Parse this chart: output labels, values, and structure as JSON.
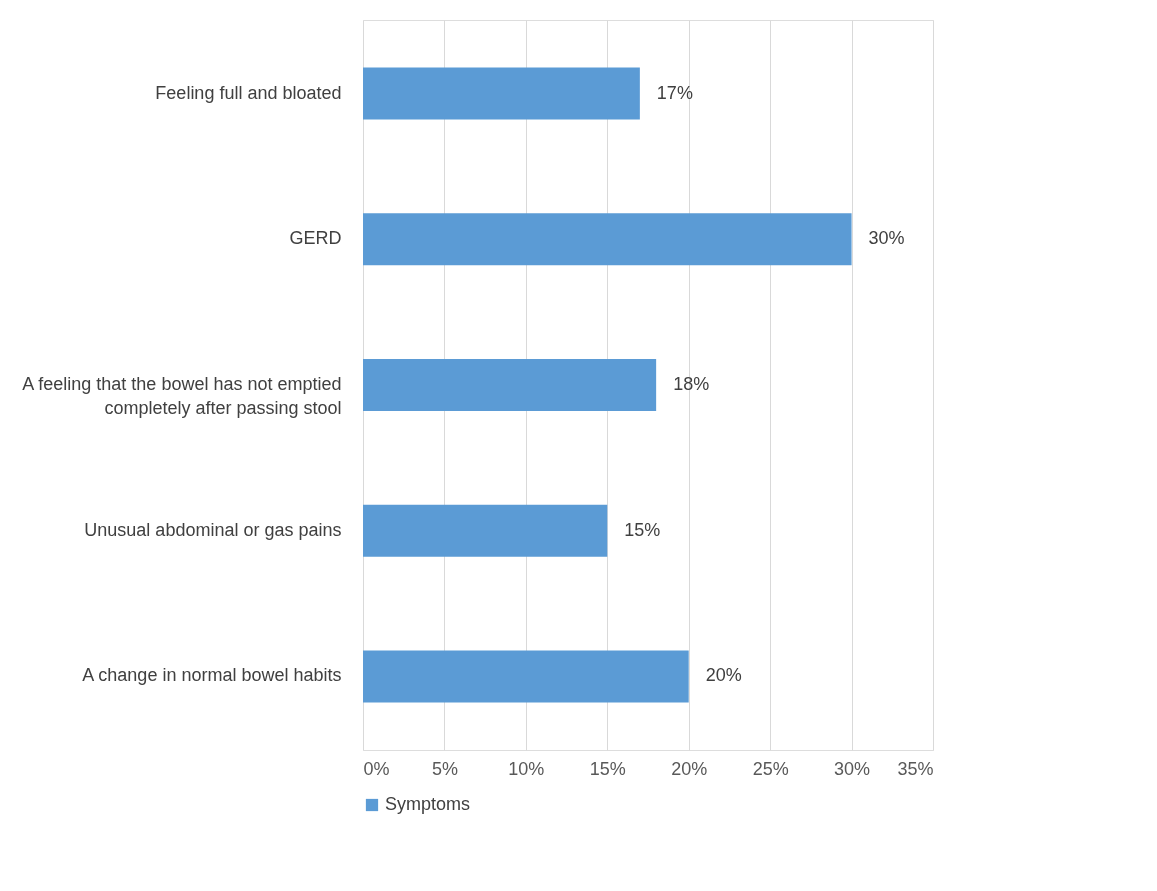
{
  "chart_data": {
    "type": "bar",
    "orientation": "horizontal",
    "categories": [
      "Feeling full and bloated",
      "GERD",
      "A feeling that the bowel has not emptied completely after passing stool",
      "Unusual abdominal or gas pains",
      "A change in normal bowel habits"
    ],
    "series": [
      {
        "name": "Symptoms",
        "color": "#5b9bd5",
        "values": [
          17,
          30,
          18,
          15,
          20
        ],
        "value_labels": [
          "17%",
          "30%",
          "18%",
          "15%",
          "20%"
        ]
      }
    ],
    "xlim": [
      0,
      35
    ],
    "xticks": [
      {
        "value": 0,
        "label": "0%"
      },
      {
        "value": 5,
        "label": "5%"
      },
      {
        "value": 10,
        "label": "10%"
      },
      {
        "value": 15,
        "label": "15%"
      },
      {
        "value": 20,
        "label": "20%"
      },
      {
        "value": 25,
        "label": "25%"
      },
      {
        "value": 30,
        "label": "30%"
      },
      {
        "value": 35,
        "label": "35%"
      }
    ],
    "grid": "x",
    "legend": "bottom"
  }
}
